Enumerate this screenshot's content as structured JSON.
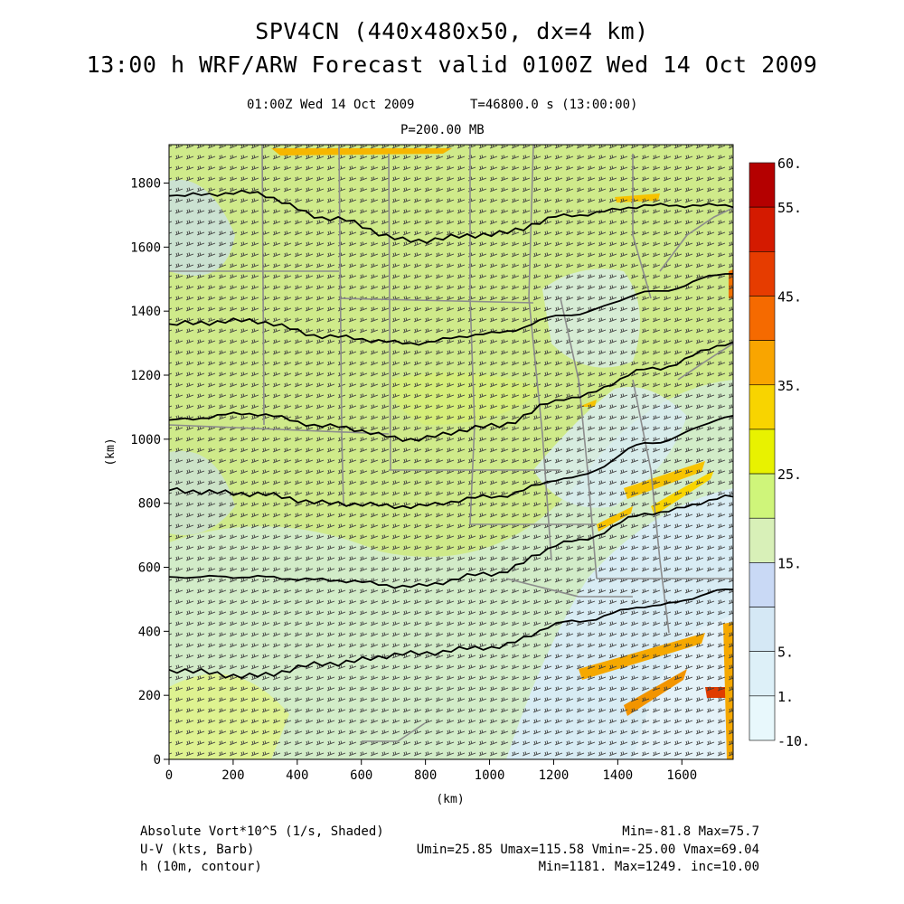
{
  "header": {
    "title_line1": "SPV4CN (440x480x50, dx=4 km)",
    "title_line2": "13:00 h WRF/ARW Forecast valid 0100Z Wed 14 Oct 2009",
    "valid_time": "01:00Z Wed 14 Oct 2009",
    "sim_time": "T=46800.0 s (13:00:00)",
    "level": "P=200.00 MB"
  },
  "axes": {
    "x_label": "(km)",
    "y_label": "(km)",
    "x_ticks": [
      "0",
      "200",
      "400",
      "600",
      "800",
      "1000",
      "1200",
      "1400",
      "1600"
    ],
    "y_ticks": [
      "0",
      "200",
      "400",
      "600",
      "800",
      "1000",
      "1200",
      "1400",
      "1600",
      "1800"
    ],
    "x_range": [
      0,
      1760
    ],
    "y_range": [
      0,
      1920
    ]
  },
  "colorbar": {
    "labels": [
      "60.",
      "55.",
      "45.",
      "35.",
      "25.",
      "15.",
      "5.",
      "1.",
      "-10."
    ],
    "colors": [
      "#b40000",
      "#d41a00",
      "#e63c00",
      "#f56a00",
      "#f9a500",
      "#f8d400",
      "#e8f200",
      "#cff57a",
      "#d8f0b8",
      "#c9d9f5",
      "#d5e8f5",
      "#ddf0f8",
      "#e8f8fc"
    ]
  },
  "footer": {
    "field1_name": "Absolute Vort*10^5 (1/s, Shaded)",
    "field1_stats": "Min=-81.8 Max=75.7",
    "field2_name": "U-V (kts, Barb)",
    "field2_stats": "Umin=25.85 Umax=115.58 Vmin=-25.00 Vmax=69.04",
    "field3_name": "h (10m, contour)",
    "field3_stats": "Min=1181. Max=1249. inc=10.00"
  },
  "contours": [
    {
      "y_km": [
        1760,
        1770,
        1690,
        1620,
        1640,
        1700,
        1730,
        1730
      ]
    },
    {
      "y_km": [
        1360,
        1370,
        1320,
        1300,
        1330,
        1390,
        1460,
        1520
      ]
    },
    {
      "y_km": [
        1060,
        1080,
        1040,
        1000,
        1040,
        1130,
        1220,
        1300
      ]
    },
    {
      "y_km": [
        840,
        830,
        800,
        790,
        820,
        880,
        990,
        1070
      ]
    },
    {
      "y_km": [
        570,
        570,
        560,
        540,
        580,
        680,
        770,
        820
      ]
    },
    {
      "y_km": [
        280,
        260,
        300,
        330,
        350,
        430,
        480,
        530
      ]
    }
  ]
}
